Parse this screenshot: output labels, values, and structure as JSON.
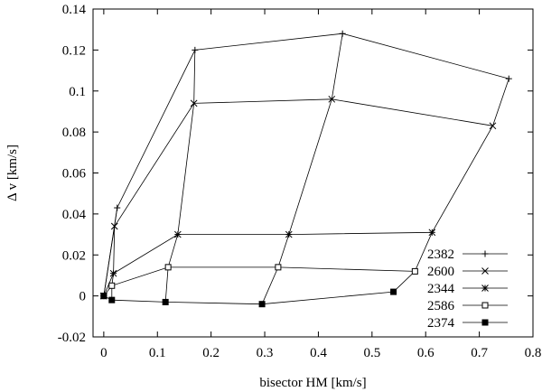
{
  "chart_data": {
    "type": "line",
    "xlabel": "bisector HM [km/s]",
    "ylabel": "Δ v [km/s]",
    "xlim": [
      -0.02,
      0.8
    ],
    "ylim": [
      -0.02,
      0.14
    ],
    "xticks": [
      0,
      0.1,
      0.2,
      0.3,
      0.4,
      0.5,
      0.6,
      0.7,
      0.8
    ],
    "yticks": [
      -0.02,
      0,
      0.02,
      0.04,
      0.06,
      0.08,
      0.1,
      0.12,
      0.14
    ],
    "xtick_labels": [
      "0",
      "0.1",
      "0.2",
      "0.3",
      "0.4",
      "0.5",
      "0.6",
      "0.7",
      "0.8"
    ],
    "ytick_labels": [
      "-0.02",
      "0",
      "0.02",
      "0.04",
      "0.06",
      "0.08",
      "0.1",
      "0.12",
      "0.14"
    ],
    "legend_position": "bottom-right",
    "grid": false,
    "series": [
      {
        "name": "2382",
        "marker": "plus",
        "x": [
          0,
          0.025,
          0.17,
          0.445,
          0.755
        ],
        "y": [
          0,
          0.043,
          0.12,
          0.128,
          0.106
        ]
      },
      {
        "name": "2600",
        "marker": "cross",
        "x": [
          0,
          0.02,
          0.168,
          0.425,
          0.725
        ],
        "y": [
          0,
          0.034,
          0.094,
          0.096,
          0.083
        ]
      },
      {
        "name": "2344",
        "marker": "asterisk",
        "x": [
          0,
          0.018,
          0.138,
          0.345,
          0.612
        ],
        "y": [
          0,
          0.011,
          0.03,
          0.03,
          0.031
        ]
      },
      {
        "name": "2586",
        "marker": "open-square",
        "x": [
          0,
          0.015,
          0.12,
          0.325,
          0.58
        ],
        "y": [
          0,
          0.005,
          0.014,
          0.014,
          0.012
        ]
      },
      {
        "name": "2374",
        "marker": "filled-square",
        "x": [
          0,
          0.015,
          0.115,
          0.295,
          0.54
        ],
        "y": [
          0,
          -0.002,
          -0.003,
          -0.004,
          0.002
        ]
      }
    ]
  }
}
